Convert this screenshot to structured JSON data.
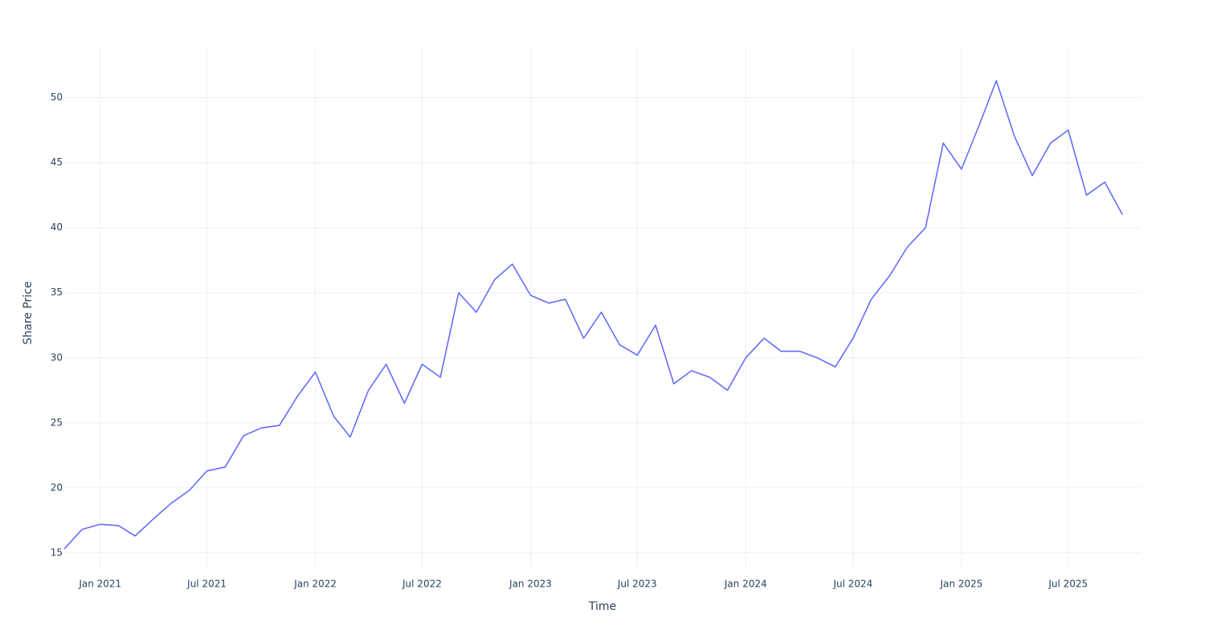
{
  "chart_data": {
    "type": "line",
    "x_label": "Time",
    "y_label": "Share Price",
    "x": [
      "2020-11",
      "2020-12",
      "2021-01",
      "2021-02",
      "2021-03",
      "2021-04",
      "2021-05",
      "2021-06",
      "2021-07",
      "2021-08",
      "2021-09",
      "2021-10",
      "2021-11",
      "2021-12",
      "2022-01",
      "2022-02",
      "2022-03",
      "2022-04",
      "2022-05",
      "2022-06",
      "2022-07",
      "2022-08",
      "2022-09",
      "2022-10",
      "2022-11",
      "2022-12",
      "2023-01",
      "2023-02",
      "2023-03",
      "2023-04",
      "2023-05",
      "2023-06",
      "2023-07",
      "2023-08",
      "2023-09",
      "2023-10",
      "2023-11",
      "2023-12",
      "2024-01",
      "2024-02",
      "2024-03",
      "2024-04",
      "2024-05",
      "2024-06",
      "2024-07",
      "2024-08",
      "2024-09",
      "2024-10",
      "2024-11",
      "2024-12",
      "2025-01",
      "2025-02",
      "2025-03",
      "2025-04",
      "2025-05",
      "2025-06",
      "2025-07",
      "2025-08",
      "2025-09",
      "2025-10"
    ],
    "series": [
      {
        "color": "#636efa",
        "values": [
          15.3,
          16.8,
          17.2,
          17.1,
          16.3,
          17.6,
          18.8,
          19.8,
          21.3,
          21.6,
          24.0,
          24.6,
          24.8,
          27.0,
          28.9,
          25.5,
          23.9,
          27.5,
          29.5,
          26.5,
          29.5,
          28.5,
          35.0,
          33.5,
          36.0,
          37.2,
          34.8,
          34.2,
          34.5,
          31.5,
          33.5,
          31.0,
          30.2,
          32.5,
          28.0,
          29.0,
          28.5,
          27.5,
          30.0,
          31.5,
          30.5,
          30.5,
          30.0,
          29.3,
          31.5,
          34.5,
          36.3,
          38.5,
          40.0,
          46.5,
          44.5,
          48.0,
          51.3,
          47.0,
          44.0,
          46.5,
          47.5,
          42.5,
          43.5,
          41.0
        ]
      }
    ],
    "xlim": [
      "2020-11",
      "2025-11"
    ],
    "xticks": [
      {
        "value": "2021-01",
        "label": "Jan 2021"
      },
      {
        "value": "2021-07",
        "label": "Jul 2021"
      },
      {
        "value": "2022-01",
        "label": "Jan 2022"
      },
      {
        "value": "2022-07",
        "label": "Jul 2022"
      },
      {
        "value": "2023-01",
        "label": "Jan 2023"
      },
      {
        "value": "2023-07",
        "label": "Jul 2023"
      },
      {
        "value": "2024-01",
        "label": "Jan 2024"
      },
      {
        "value": "2024-07",
        "label": "Jul 2024"
      },
      {
        "value": "2025-01",
        "label": "Jan 2025"
      },
      {
        "value": "2025-07",
        "label": "Jul 2025"
      }
    ],
    "ylim": [
      13.7,
      53.8
    ],
    "yticks": [
      15,
      20,
      25,
      30,
      35,
      40,
      45,
      50
    ],
    "grid": true
  }
}
